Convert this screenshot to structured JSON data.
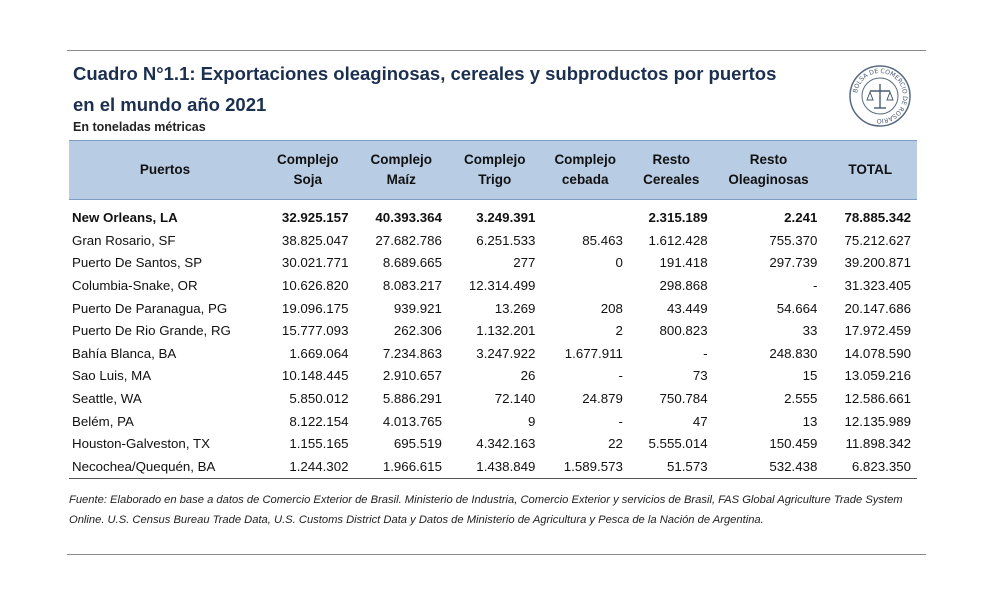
{
  "title_line1": "Cuadro N°1.1: Exportaciones oleaginosas, cereales y subproductos por puertos",
  "title_line2": "en el mundo año 2021",
  "subtitle": "En toneladas métricas",
  "seal_text": "BOLSA DE COMERCIO DE ROSARIO",
  "headers": [
    [
      "Puertos",
      ""
    ],
    [
      "Complejo",
      "Soja"
    ],
    [
      "Complejo",
      "Maíz"
    ],
    [
      "Complejo",
      "Trigo"
    ],
    [
      "Complejo",
      "cebada"
    ],
    [
      "Resto",
      "Cereales"
    ],
    [
      "Resto",
      "Oleaginosas"
    ],
    [
      "TOTAL",
      ""
    ]
  ],
  "rows": [
    [
      "New Orleans, LA",
      "32.925.157",
      "40.393.364",
      "3.249.391",
      "",
      "2.315.189",
      "2.241",
      "78.885.342"
    ],
    [
      "Gran Rosario, SF",
      "38.825.047",
      "27.682.786",
      "6.251.533",
      "85.463",
      "1.612.428",
      "755.370",
      "75.212.627"
    ],
    [
      "Puerto De Santos, SP",
      "30.021.771",
      "8.689.665",
      "277",
      "0",
      "191.418",
      "297.739",
      "39.200.871"
    ],
    [
      "Columbia-Snake, OR",
      "10.626.820",
      "8.083.217",
      "12.314.499",
      "",
      "298.868",
      "-",
      "31.323.405"
    ],
    [
      "Puerto De Paranagua, PG",
      "19.096.175",
      "939.921",
      "13.269",
      "208",
      "43.449",
      "54.664",
      "20.147.686"
    ],
    [
      "Puerto De Rio Grande, RG",
      "15.777.093",
      "262.306",
      "1.132.201",
      "2",
      "800.823",
      "33",
      "17.972.459"
    ],
    [
      "Bahía Blanca, BA",
      "1.669.064",
      "7.234.863",
      "3.247.922",
      "1.677.911",
      "-",
      "248.830",
      "14.078.590"
    ],
    [
      "Sao Luis, MA",
      "10.148.445",
      "2.910.657",
      "26",
      "-",
      "73",
      "15",
      "13.059.216"
    ],
    [
      "Seattle, WA",
      "5.850.012",
      "5.886.291",
      "72.140",
      "24.879",
      "750.784",
      "2.555",
      "12.586.661"
    ],
    [
      "Belém, PA",
      "8.122.154",
      "4.013.765",
      "9",
      "-",
      "47",
      "13",
      "12.135.989"
    ],
    [
      "Houston-Galveston, TX",
      "1.155.165",
      "695.519",
      "4.342.163",
      "22",
      "5.555.014",
      "150.459",
      "11.898.342"
    ],
    [
      "Necochea/Quequén, BA",
      "1.244.302",
      "1.966.615",
      "1.438.849",
      "1.589.573",
      "51.573",
      "532.438",
      "6.823.350"
    ]
  ],
  "source": "Fuente: Elaborado en base a datos de Comercio Exterior de Brasil. Ministerio de Industria, Comercio Exterior y servicios de Brasil, FAS Global Agriculture Trade System Online. U.S. Census Bureau Trade Data, U.S. Customs District Data y Datos de Ministerio de Agricultura y Pesca de la Nación de Argentina."
}
